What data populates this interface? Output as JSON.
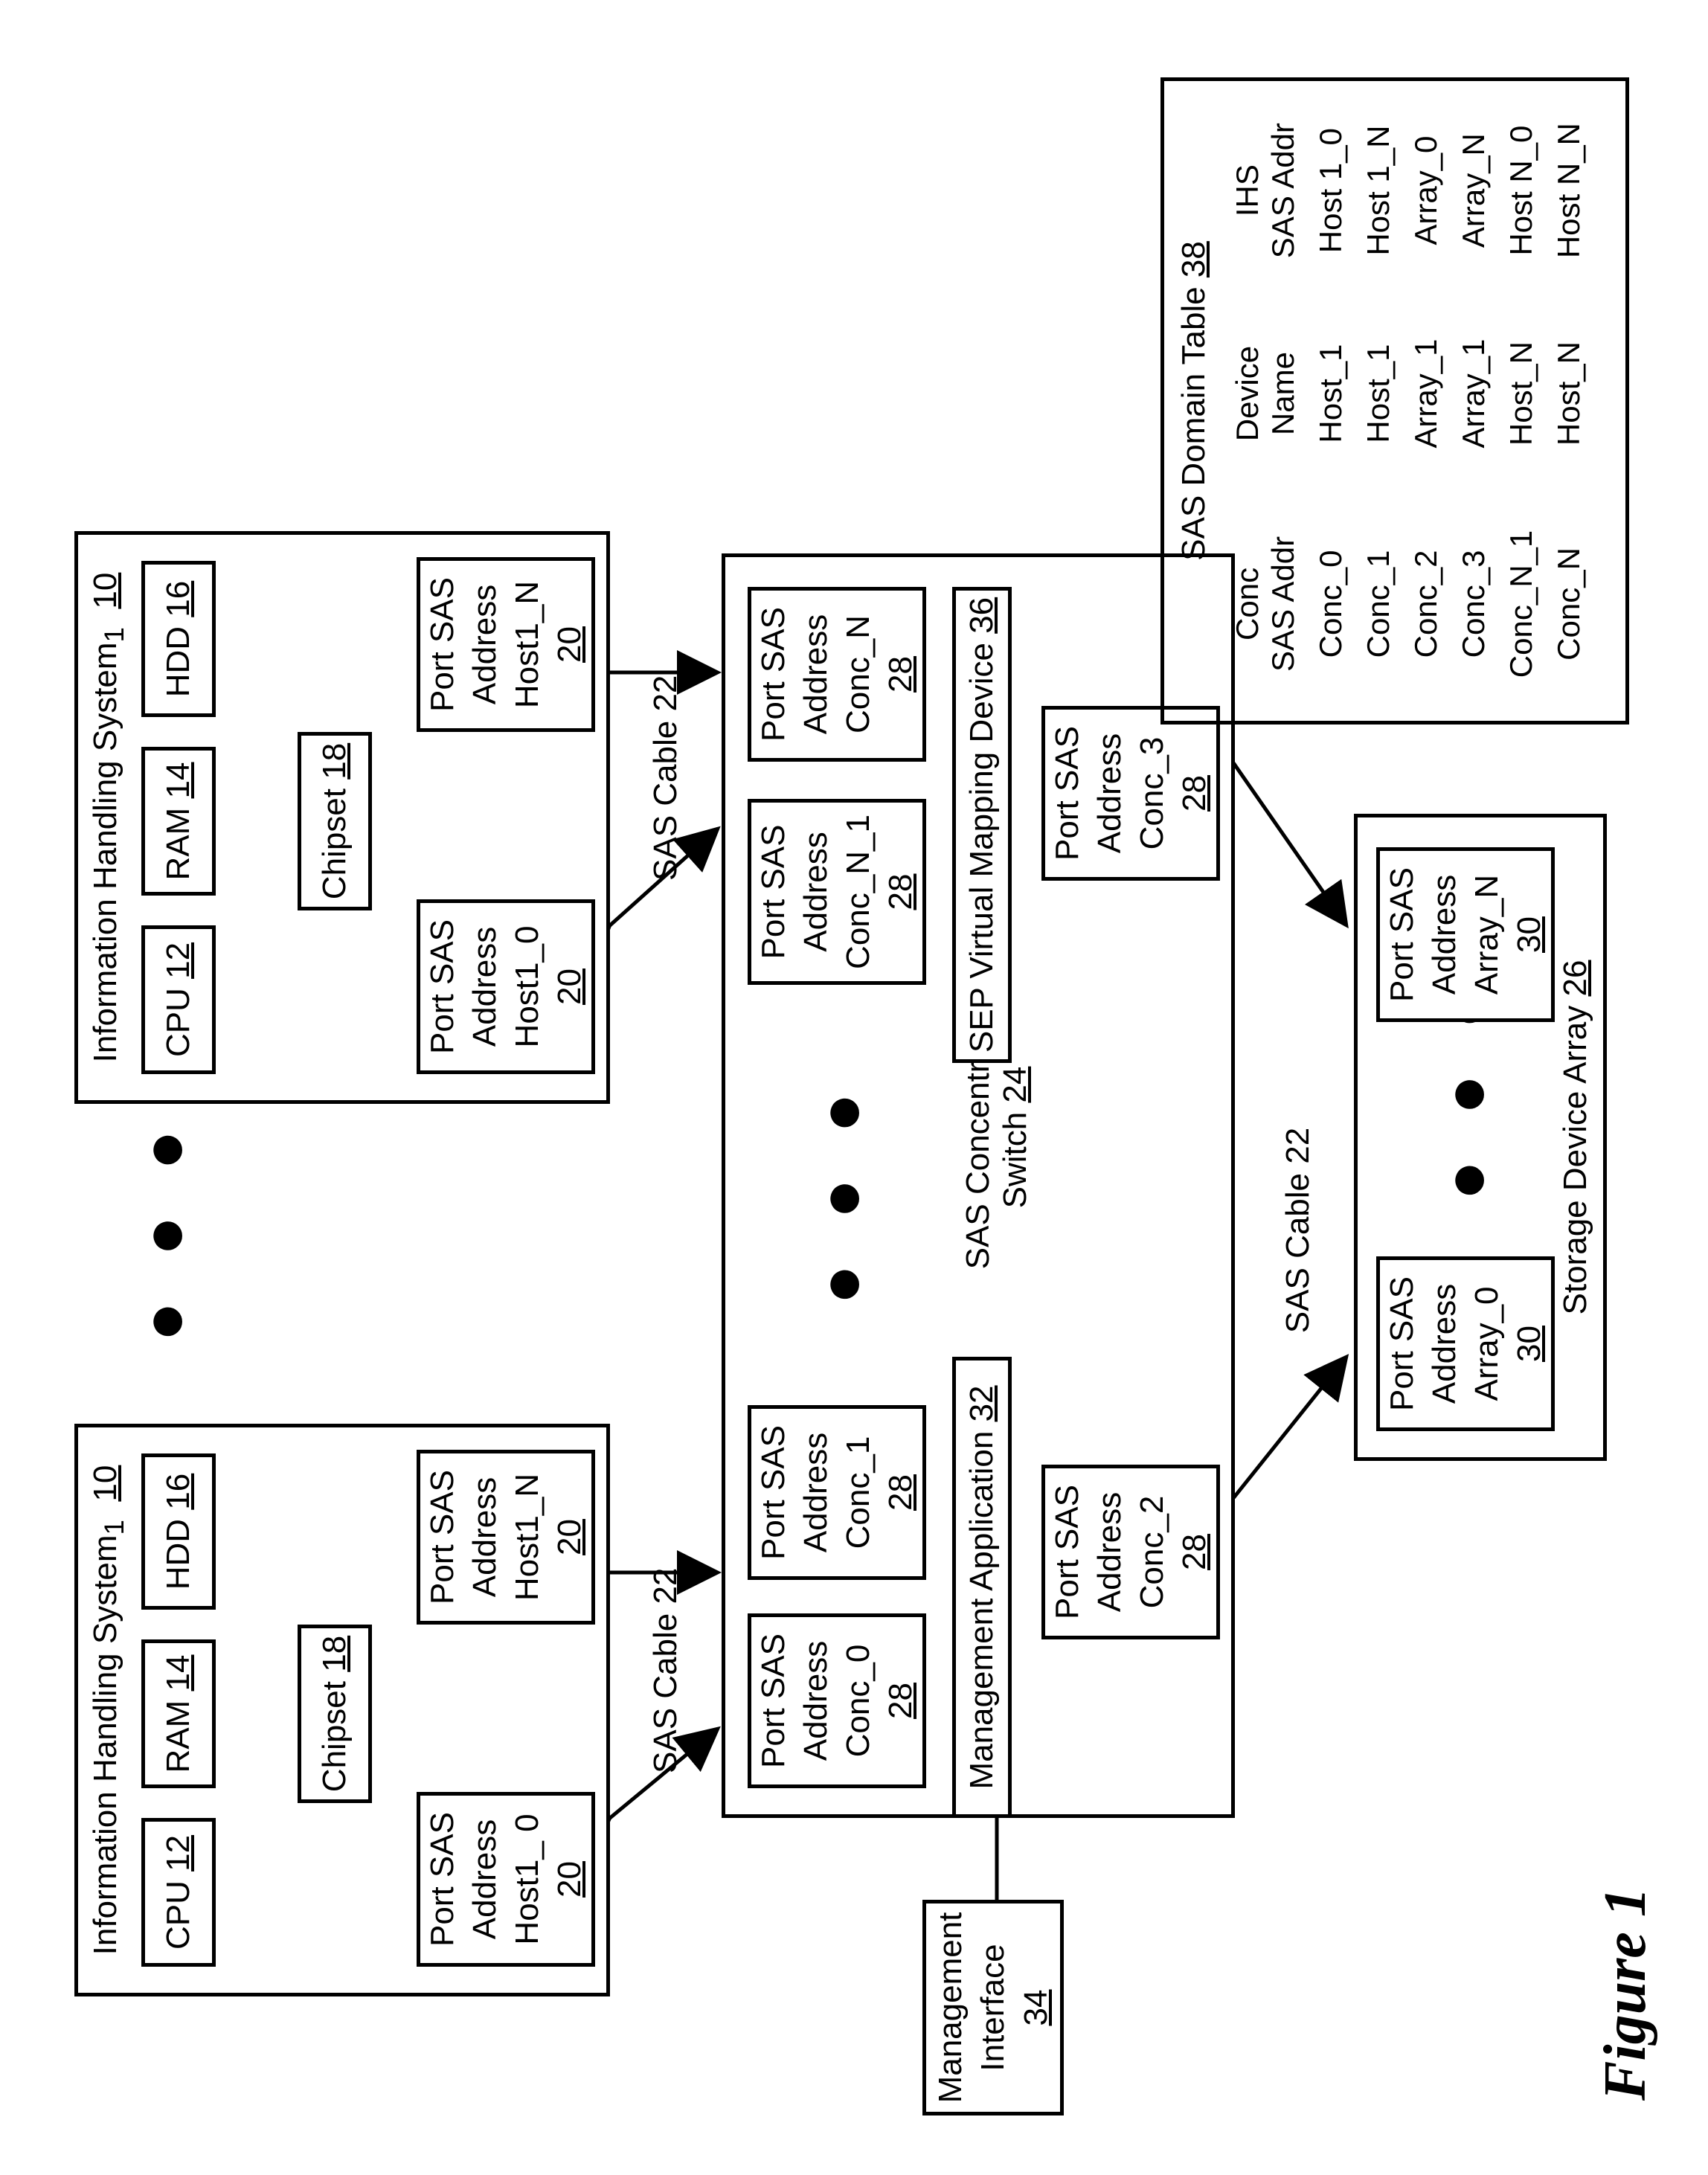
{
  "ihs1": {
    "title": "Information Handling System",
    "subscript": "1",
    "ref": "10",
    "cpu": {
      "label": "CPU",
      "ref": "12"
    },
    "ram": {
      "label": "RAM",
      "ref": "14"
    },
    "hdd": {
      "label": "HDD",
      "ref": "16"
    },
    "chipset": {
      "label": "Chipset",
      "ref": "18"
    },
    "port_a": {
      "l1": "Port SAS",
      "l2": "Address",
      "l3": "Host1_ 0",
      "ref": "20"
    },
    "port_b": {
      "l1": "Port SAS",
      "l2": "Address",
      "l3": "Host1_N",
      "ref": "20"
    }
  },
  "ihs2": {
    "title": "Information Handling System",
    "subscript": "1",
    "ref": "10",
    "cpu": {
      "label": "CPU",
      "ref": "12"
    },
    "ram": {
      "label": "RAM",
      "ref": "14"
    },
    "hdd": {
      "label": "HDD",
      "ref": "16"
    },
    "chipset": {
      "label": "Chipset",
      "ref": "18"
    },
    "port_a": {
      "l1": "Port SAS",
      "l2": "Address",
      "l3": "Host1_0",
      "ref": "20"
    },
    "port_b": {
      "l1": "Port SAS",
      "l2": "Address",
      "l3": "Host1_N",
      "ref": "20"
    }
  },
  "switch": {
    "title": "SAS Concentrator",
    "subtitle": "Switch",
    "ref": "24",
    "mgmt_app": {
      "label": "Management Application",
      "ref": "32"
    },
    "sep": {
      "label": "SEP Virtual Mapping Device",
      "ref": "36"
    },
    "port0": {
      "l1": "Port SAS",
      "l2": "Address",
      "l3": "Conc_0",
      "ref": "28"
    },
    "port1": {
      "l1": "Port SAS",
      "l2": "Address",
      "l3": "Conc_1",
      "ref": "28"
    },
    "portN1": {
      "l1": "Port SAS",
      "l2": "Address",
      "l3": "Conc_N_1",
      "ref": "28"
    },
    "portN": {
      "l1": "Port SAS",
      "l2": "Address",
      "l3": "Conc_N",
      "ref": "28"
    },
    "port2": {
      "l1": "Port SAS",
      "l2": "Address",
      "l3": "Conc_2",
      "ref": "28"
    },
    "port3": {
      "l1": "Port SAS",
      "l2": "Address",
      "l3": "Conc_3",
      "ref": "28"
    }
  },
  "mgmt_if": {
    "l1": "Management",
    "l2": "Interface",
    "ref": "34"
  },
  "array": {
    "title": "Storage Device Array",
    "ref": "26",
    "port0": {
      "l1": "Port SAS",
      "l2": "Address",
      "l3": "Array_0",
      "ref": "30"
    },
    "portN": {
      "l1": "Port SAS",
      "l2": "Address",
      "l3": "Array_N",
      "ref": "30"
    }
  },
  "cable": {
    "label": "SAS Cable 22"
  },
  "table": {
    "title": "SAS Domain Table",
    "ref": "38",
    "headers": {
      "c1a": "Conc",
      "c1b": "SAS Addr",
      "c2a": "Device",
      "c2b": "Name",
      "c3a": "IHS",
      "c3b": "SAS Addr"
    },
    "rows": [
      {
        "c1": "Conc_0",
        "c2": "Host_1",
        "c3": "Host 1_0"
      },
      {
        "c1": "Conc_1",
        "c2": "Host_1",
        "c3": "Host 1_N"
      },
      {
        "c1": "Conc_2",
        "c2": "Array_1",
        "c3": "Array_0"
      },
      {
        "c1": "Conc_3",
        "c2": "Array_1",
        "c3": "Array_N"
      },
      {
        "c1": "Conc_N_1",
        "c2": "Host_N",
        "c3": "Host N_0"
      },
      {
        "c1": "Conc_N",
        "c2": "Host_N",
        "c3": "Host N_N"
      }
    ]
  },
  "figure": "Figure 1",
  "colors": {
    "line": "#000000",
    "bg": "#ffffff"
  }
}
